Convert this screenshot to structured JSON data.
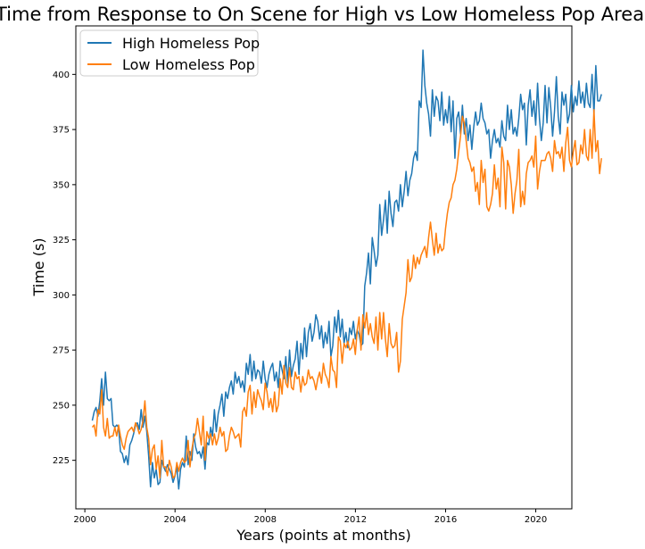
{
  "chart_data": {
    "type": "line",
    "title": "Time from Response to On Scene for High vs Low Homeless Pop Areas",
    "xlabel": "Years (points at months)",
    "ylabel": "Time (s)",
    "xlim": [
      1999.6,
      2021.6
    ],
    "ylim": [
      203,
      422
    ],
    "x_ticks": [
      2000,
      2004,
      2008,
      2012,
      2016,
      2020
    ],
    "x_tick_labels": [
      "2000",
      "2004",
      "2008",
      "2012",
      "2016",
      "2020"
    ],
    "y_ticks": [
      225,
      250,
      275,
      300,
      325,
      350,
      375,
      400
    ],
    "y_tick_labels": [
      "225",
      "250",
      "275",
      "300",
      "325",
      "350",
      "375",
      "400"
    ],
    "grid": false,
    "legend_position": "top-left",
    "x_start": 2000.33,
    "x_step": 0.0833333,
    "series": [
      {
        "name": "High Homeless Pop",
        "color": "#1f77b4",
        "values": [
          243,
          247,
          249,
          245,
          252,
          262,
          250,
          265,
          253,
          252,
          253,
          241,
          240,
          241,
          240,
          229,
          228,
          224,
          227,
          223,
          232,
          234,
          237,
          241,
          242,
          239,
          248,
          240,
          245,
          238,
          227,
          213,
          224,
          217,
          221,
          214,
          215,
          225,
          222,
          220,
          223,
          221,
          219,
          215,
          218,
          222,
          212,
          221,
          224,
          222,
          236,
          223,
          229,
          225,
          237,
          231,
          228,
          229,
          226,
          231,
          221,
          233,
          232,
          240,
          236,
          248,
          238,
          246,
          250,
          255,
          245,
          256,
          253,
          258,
          261,
          255,
          265,
          260,
          263,
          258,
          261,
          256,
          269,
          264,
          273,
          261,
          270,
          262,
          266,
          265,
          260,
          270,
          262,
          258,
          264,
          267,
          269,
          261,
          265,
          258,
          270,
          266,
          262,
          272,
          260,
          275,
          263,
          268,
          271,
          279,
          264,
          278,
          271,
          285,
          272,
          283,
          287,
          279,
          283,
          291,
          288,
          280,
          286,
          276,
          283,
          278,
          288,
          272,
          277,
          290,
          283,
          293,
          281,
          289,
          278,
          283,
          276,
          285,
          282,
          288,
          280,
          284,
          282,
          277,
          278,
          304,
          310,
          319,
          305,
          326,
          320,
          313,
          318,
          341,
          327,
          334,
          343,
          328,
          347,
          337,
          331,
          342,
          343,
          338,
          350,
          340,
          347,
          356,
          345,
          352,
          355,
          362,
          365,
          361,
          388,
          385,
          411,
          395,
          387,
          382,
          372,
          393,
          381,
          390,
          388,
          379,
          392,
          377,
          384,
          378,
          390,
          374,
          388,
          362,
          380,
          383,
          373,
          386,
          373,
          380,
          370,
          377,
          366,
          376,
          383,
          377,
          379,
          387,
          380,
          378,
          373,
          375,
          362,
          370,
          375,
          369,
          371,
          367,
          379,
          372,
          370,
          386,
          375,
          384,
          373,
          376,
          372,
          380,
          391,
          384,
          387,
          368,
          386,
          393,
          381,
          388,
          377,
          396,
          380,
          370,
          378,
          395,
          378,
          394,
          385,
          372,
          383,
          399,
          381,
          373,
          392,
          386,
          391,
          378,
          382,
          395,
          383,
          390,
          386,
          397,
          387,
          392,
          385,
          396,
          387,
          385,
          400,
          382,
          404,
          388,
          388,
          391
        ]
      },
      {
        "name": "Low Homeless Pop",
        "color": "#ff7f0e",
        "values": [
          240,
          241,
          236,
          248,
          246,
          257,
          240,
          236,
          244,
          235,
          236,
          236,
          240,
          236,
          241,
          236,
          232,
          230,
          235,
          238,
          239,
          240,
          238,
          242,
          240,
          237,
          239,
          243,
          252,
          240,
          235,
          223,
          230,
          232,
          221,
          227,
          217,
          234,
          222,
          222,
          218,
          225,
          222,
          217,
          218,
          224,
          220,
          224,
          226,
          224,
          225,
          234,
          222,
          230,
          235,
          237,
          244,
          238,
          232,
          245,
          225,
          238,
          235,
          237,
          232,
          237,
          232,
          235,
          240,
          236,
          238,
          229,
          230,
          236,
          240,
          238,
          235,
          236,
          237,
          231,
          247,
          249,
          245,
          256,
          259,
          246,
          256,
          249,
          257,
          254,
          252,
          248,
          260,
          256,
          249,
          253,
          247,
          256,
          247,
          250,
          262,
          255,
          268,
          260,
          258,
          267,
          258,
          257,
          265,
          262,
          263,
          256,
          263,
          259,
          260,
          266,
          262,
          263,
          261,
          257,
          262,
          265,
          260,
          269,
          264,
          262,
          258,
          272,
          266,
          265,
          258,
          281,
          279,
          269,
          278,
          276,
          279,
          275,
          276,
          280,
          273,
          284,
          290,
          275,
          291,
          285,
          292,
          282,
          287,
          281,
          278,
          290,
          275,
          292,
          280,
          292,
          280,
          272,
          287,
          278,
          276,
          277,
          283,
          265,
          270,
          289,
          295,
          301,
          316,
          306,
          308,
          318,
          312,
          317,
          314,
          318,
          320,
          322,
          317,
          326,
          333,
          325,
          318,
          328,
          319,
          323,
          320,
          321,
          330,
          337,
          342,
          344,
          350,
          352,
          357,
          365,
          372,
          381,
          378,
          370,
          362,
          360,
          356,
          358,
          347,
          351,
          341,
          361,
          351,
          357,
          340,
          338,
          341,
          346,
          359,
          348,
          353,
          340,
          367,
          360,
          339,
          361,
          358,
          350,
          337,
          346,
          352,
          366,
          340,
          347,
          341,
          355,
          360,
          361,
          363,
          358,
          372,
          348,
          356,
          361,
          361,
          361,
          364,
          365,
          362,
          356,
          370,
          364,
          365,
          362,
          367,
          356,
          369,
          376,
          361,
          358,
          365,
          370,
          359,
          360,
          368,
          364,
          375,
          363,
          361,
          375,
          362,
          384,
          365,
          370,
          355,
          362
        ]
      }
    ]
  }
}
